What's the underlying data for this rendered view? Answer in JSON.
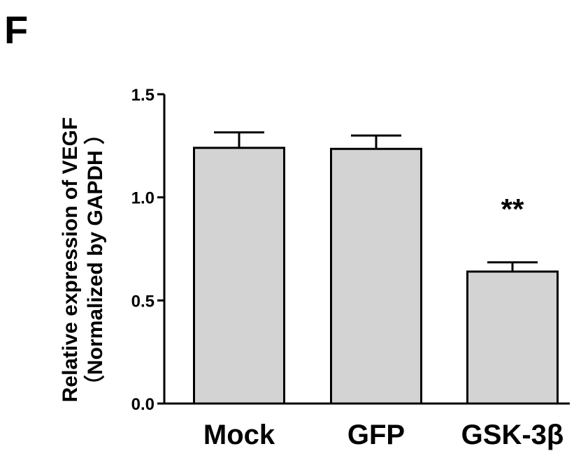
{
  "panel_label": "F",
  "chart_data": {
    "type": "bar",
    "title": "",
    "ylabel_line1": "Relative expression  of VEGF",
    "ylabel_line2": "（Normalized by GAPDH ）",
    "xlabel": "",
    "categories": [
      "Mock",
      "GFP",
      "GSK-3β"
    ],
    "values": [
      1.24,
      1.235,
      0.64
    ],
    "errors": [
      0.075,
      0.065,
      0.045
    ],
    "annotations": [
      "",
      "",
      "**"
    ],
    "ylim": [
      0,
      1.5
    ],
    "yticks": [
      0.0,
      0.5,
      1.0,
      1.5
    ],
    "ytick_labels": [
      "0.0",
      "0.5",
      "1.0",
      "1.5"
    ],
    "grid": false,
    "legend": "none",
    "bar_color": "#d3d3d3",
    "edge_color": "#000000"
  }
}
